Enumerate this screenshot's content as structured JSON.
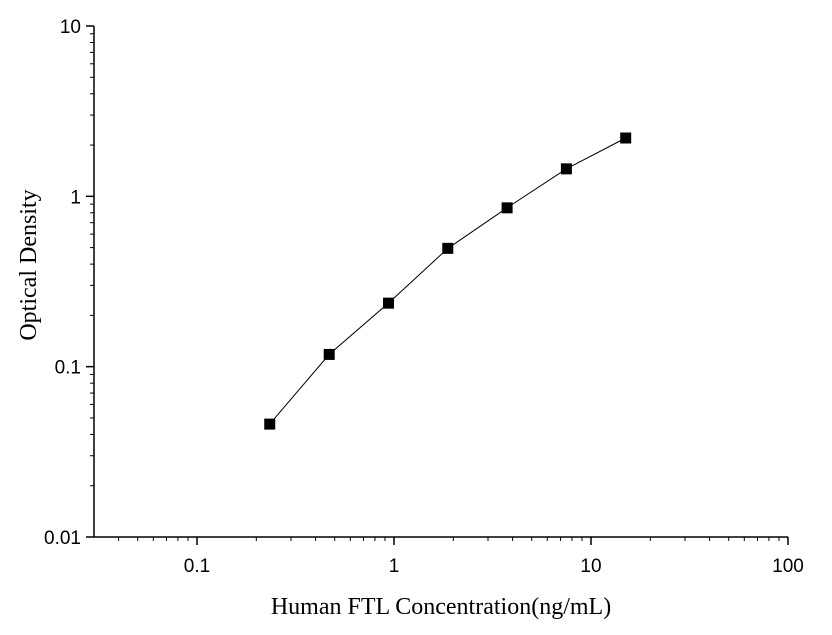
{
  "chart_data": {
    "type": "scatter",
    "xlabel": "Human FTL Concentration(ng/mL)",
    "ylabel": "Optical Density",
    "x_scale": "log",
    "y_scale": "log",
    "xlim": [
      0.03,
      100
    ],
    "ylim": [
      0.01,
      10
    ],
    "x_ticks": [
      "0.1",
      "1",
      "10",
      "100"
    ],
    "y_ticks": [
      "0.01",
      "0.1",
      "1",
      "10"
    ],
    "grid": false,
    "series": [
      {
        "marker": "square",
        "connected": true,
        "color": "#000000",
        "points": [
          {
            "x": 0.234,
            "y": 0.046
          },
          {
            "x": 0.469,
            "y": 0.118
          },
          {
            "x": 0.938,
            "y": 0.236
          },
          {
            "x": 1.875,
            "y": 0.495
          },
          {
            "x": 3.75,
            "y": 0.856
          },
          {
            "x": 7.5,
            "y": 1.45
          },
          {
            "x": 15,
            "y": 2.2
          }
        ]
      }
    ]
  }
}
